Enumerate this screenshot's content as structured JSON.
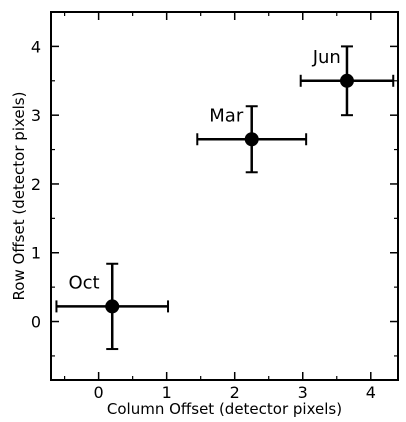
{
  "chart_data": {
    "type": "scatter",
    "xlabel": "Column Offset (detector pixels)",
    "ylabel": "Row Offset (detector pixels)",
    "xlim": [
      -0.7,
      4.4
    ],
    "ylim": [
      -0.85,
      4.5
    ],
    "xticks": [
      0,
      1,
      2,
      3,
      4
    ],
    "yticks": [
      0,
      1,
      2,
      3,
      4
    ],
    "tick_labels_x": [
      "0",
      "1",
      "2",
      "3",
      "4"
    ],
    "tick_labels_y": [
      "0",
      "1",
      "2",
      "3",
      "4"
    ],
    "grid": false,
    "points": [
      {
        "label": "Oct",
        "x": 0.2,
        "y": 0.22,
        "xerr": 0.82,
        "yerr": 0.62
      },
      {
        "label": "Mar",
        "x": 2.25,
        "y": 2.65,
        "xerr": 0.8,
        "yerr": 0.48
      },
      {
        "label": "Jun",
        "x": 3.65,
        "y": 3.5,
        "xerr": 0.68,
        "yerr": 0.5
      }
    ]
  }
}
